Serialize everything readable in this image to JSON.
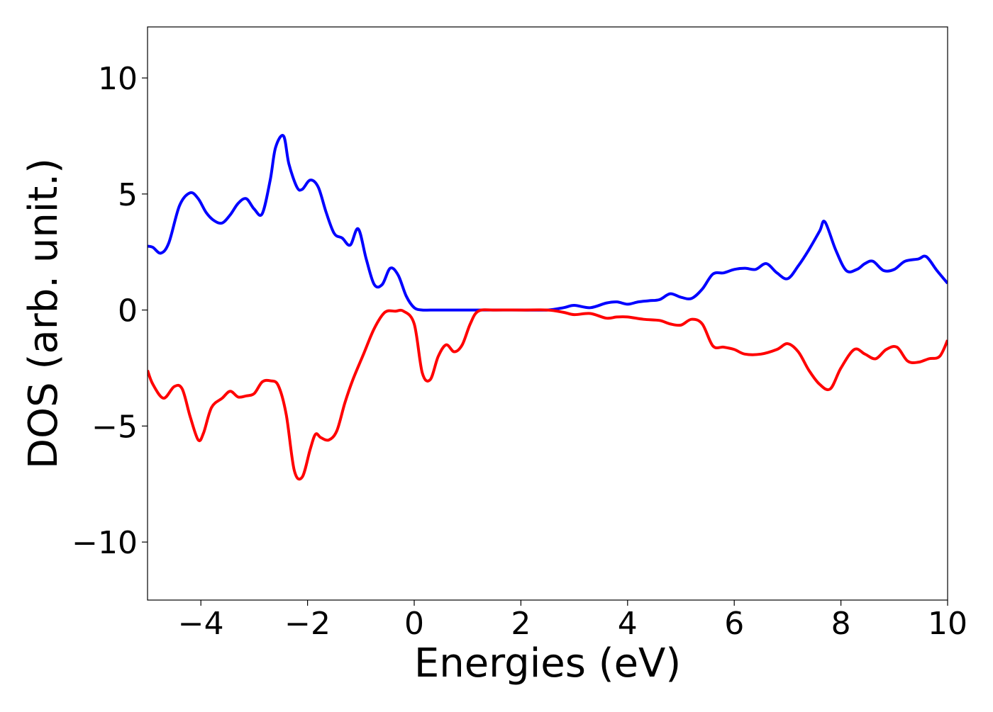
{
  "chart_data": {
    "type": "line",
    "title": "",
    "xlabel": "Energies (eV)",
    "ylabel": "DOS (arb. unit.)",
    "xlim": [
      -5,
      10
    ],
    "ylim": [
      -12.5,
      12.2
    ],
    "xticks": [
      -4,
      -2,
      0,
      2,
      4,
      6,
      8,
      10
    ],
    "xtick_labels": [
      "−4",
      "−2",
      "0",
      "2",
      "4",
      "6",
      "8",
      "10"
    ],
    "yticks": [
      -10,
      -5,
      0,
      5,
      10
    ],
    "ytick_labels": [
      "−10",
      "−5",
      "0",
      "5",
      "10"
    ],
    "grid": false,
    "legend": "none",
    "series": [
      {
        "color": "#0000ff",
        "x": [
          -5.0,
          -4.9,
          -4.75,
          -4.6,
          -4.4,
          -4.2,
          -4.05,
          -3.9,
          -3.75,
          -3.6,
          -3.45,
          -3.3,
          -3.15,
          -3.0,
          -2.85,
          -2.7,
          -2.6,
          -2.45,
          -2.35,
          -2.2,
          -2.1,
          -1.95,
          -1.8,
          -1.65,
          -1.5,
          -1.35,
          -1.2,
          -1.05,
          -0.9,
          -0.75,
          -0.6,
          -0.45,
          -0.3,
          -0.15,
          0.0,
          0.15,
          0.3,
          0.5,
          1.0,
          1.5,
          2.0,
          2.5,
          2.8,
          3.0,
          3.3,
          3.6,
          3.8,
          4.0,
          4.2,
          4.4,
          4.6,
          4.8,
          5.0,
          5.2,
          5.4,
          5.6,
          5.8,
          6.0,
          6.2,
          6.4,
          6.6,
          6.8,
          7.0,
          7.2,
          7.4,
          7.6,
          7.7,
          7.9,
          8.1,
          8.3,
          8.45,
          8.6,
          8.8,
          9.0,
          9.2,
          9.45,
          9.6,
          9.8,
          10.0
        ],
        "values": [
          2.75,
          2.7,
          2.45,
          2.9,
          4.5,
          5.05,
          4.8,
          4.2,
          3.85,
          3.75,
          4.1,
          4.6,
          4.8,
          4.35,
          4.15,
          5.6,
          7.0,
          7.5,
          6.3,
          5.3,
          5.2,
          5.6,
          5.3,
          4.2,
          3.3,
          3.1,
          2.8,
          3.5,
          2.2,
          1.1,
          1.1,
          1.8,
          1.5,
          0.6,
          0.1,
          0.0,
          0.0,
          0.0,
          0.0,
          0.0,
          0.0,
          0.0,
          0.1,
          0.2,
          0.1,
          0.3,
          0.35,
          0.25,
          0.35,
          0.4,
          0.45,
          0.7,
          0.55,
          0.5,
          0.9,
          1.55,
          1.6,
          1.75,
          1.8,
          1.75,
          2.0,
          1.6,
          1.35,
          1.9,
          2.6,
          3.4,
          3.8,
          2.6,
          1.7,
          1.75,
          2.0,
          2.1,
          1.7,
          1.75,
          2.1,
          2.2,
          2.3,
          1.7,
          1.15
        ]
      },
      {
        "color": "#ff0000",
        "x": [
          -5.0,
          -4.9,
          -4.7,
          -4.5,
          -4.35,
          -4.2,
          -4.05,
          -3.95,
          -3.8,
          -3.6,
          -3.45,
          -3.3,
          -3.15,
          -3.0,
          -2.85,
          -2.7,
          -2.55,
          -2.4,
          -2.25,
          -2.1,
          -1.95,
          -1.85,
          -1.75,
          -1.6,
          -1.45,
          -1.3,
          -1.15,
          -0.95,
          -0.75,
          -0.55,
          -0.35,
          -0.2,
          0.0,
          0.15,
          0.3,
          0.45,
          0.6,
          0.75,
          0.9,
          1.05,
          1.2,
          1.5,
          2.0,
          2.5,
          2.8,
          3.0,
          3.3,
          3.6,
          3.8,
          4.0,
          4.3,
          4.6,
          4.8,
          5.0,
          5.2,
          5.4,
          5.6,
          5.8,
          6.0,
          6.2,
          6.5,
          6.8,
          7.0,
          7.2,
          7.4,
          7.6,
          7.8,
          8.0,
          8.25,
          8.45,
          8.65,
          8.85,
          9.05,
          9.25,
          9.45,
          9.65,
          9.85,
          10.0
        ],
        "values": [
          -2.6,
          -3.2,
          -3.8,
          -3.3,
          -3.4,
          -4.6,
          -5.6,
          -5.3,
          -4.2,
          -3.8,
          -3.5,
          -3.75,
          -3.7,
          -3.6,
          -3.1,
          -3.05,
          -3.25,
          -4.5,
          -6.9,
          -7.2,
          -6.0,
          -5.35,
          -5.5,
          -5.6,
          -5.2,
          -4.0,
          -3.0,
          -1.9,
          -0.8,
          -0.1,
          -0.05,
          -0.05,
          -0.6,
          -2.7,
          -3.0,
          -2.0,
          -1.5,
          -1.8,
          -1.5,
          -0.6,
          -0.05,
          0.0,
          0.0,
          0.0,
          -0.1,
          -0.2,
          -0.15,
          -0.35,
          -0.3,
          -0.3,
          -0.4,
          -0.45,
          -0.6,
          -0.65,
          -0.4,
          -0.6,
          -1.55,
          -1.6,
          -1.7,
          -1.9,
          -1.9,
          -1.7,
          -1.45,
          -1.8,
          -2.6,
          -3.2,
          -3.4,
          -2.5,
          -1.7,
          -1.9,
          -2.1,
          -1.7,
          -1.6,
          -2.2,
          -2.25,
          -2.1,
          -2.0,
          -1.3
        ]
      }
    ]
  }
}
